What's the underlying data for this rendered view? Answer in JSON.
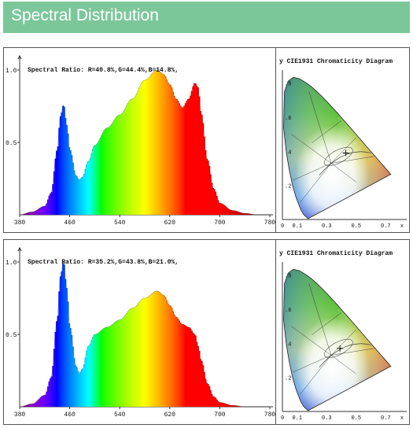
{
  "header": {
    "title": "Spectral Distribution"
  },
  "colors": {
    "banner": "#7cc79a"
  },
  "chart_data": [
    {
      "type": "area",
      "title": "Spectral Ratio:  R=40.8%,G=44.4%,B=14.8%,",
      "x_ticks": [
        "380",
        "460",
        "540",
        "620",
        "700",
        "780"
      ],
      "y_ticks": [
        "1.0",
        "0.5"
      ],
      "xlim": [
        380,
        780
      ],
      "ylim": [
        0,
        1.0
      ],
      "x": [
        380,
        400,
        420,
        430,
        440,
        445,
        450,
        455,
        460,
        470,
        475,
        480,
        490,
        500,
        520,
        540,
        560,
        580,
        600,
        610,
        620,
        630,
        640,
        650,
        660,
        665,
        670,
        680,
        690,
        700,
        720,
        740,
        760,
        780
      ],
      "y": [
        0.0,
        0.02,
        0.06,
        0.15,
        0.45,
        0.68,
        0.76,
        0.62,
        0.45,
        0.27,
        0.24,
        0.26,
        0.37,
        0.48,
        0.6,
        0.69,
        0.8,
        0.93,
        1.0,
        0.97,
        0.9,
        0.8,
        0.74,
        0.8,
        0.91,
        0.88,
        0.7,
        0.38,
        0.18,
        0.08,
        0.03,
        0.01,
        0.0,
        0.0
      ]
    },
    {
      "type": "scatter",
      "title": "y  CIE1931 Chromaticity Diagram",
      "x_ticks": [
        "0",
        "0.1",
        "0.3",
        "0.5",
        "0.7",
        "x"
      ],
      "y_ticks": [
        ".8",
        ".6",
        ".4",
        ".2"
      ],
      "point": [
        0.43,
        0.39
      ]
    },
    {
      "type": "area",
      "title": "Spectral Ratio:  R=35.2%,G=43.8%,B=21.0%,",
      "x_ticks": [
        "380",
        "460",
        "540",
        "620",
        "700",
        "780"
      ],
      "y_ticks": [
        "1.0",
        "0.5"
      ],
      "xlim": [
        380,
        780
      ],
      "ylim": [
        0,
        1.0
      ],
      "x": [
        380,
        400,
        420,
        430,
        440,
        445,
        450,
        455,
        460,
        470,
        475,
        480,
        490,
        500,
        520,
        540,
        560,
        580,
        600,
        610,
        620,
        630,
        640,
        650,
        660,
        665,
        670,
        680,
        690,
        700,
        720,
        740,
        760,
        780
      ],
      "y": [
        0.0,
        0.02,
        0.08,
        0.2,
        0.6,
        0.9,
        1.0,
        0.82,
        0.55,
        0.28,
        0.23,
        0.26,
        0.42,
        0.5,
        0.55,
        0.6,
        0.68,
        0.75,
        0.8,
        0.77,
        0.7,
        0.62,
        0.57,
        0.55,
        0.5,
        0.42,
        0.32,
        0.16,
        0.07,
        0.03,
        0.01,
        0.0,
        0.0,
        0.0
      ]
    },
    {
      "type": "scatter",
      "title": "y  CIE1931 Chromaticity Diagram",
      "x_ticks": [
        "0",
        "0.1",
        "0.3",
        "0.5",
        "0.7",
        "x"
      ],
      "y_ticks": [
        ".8",
        ".6",
        ".4",
        ".2"
      ],
      "point": [
        0.39,
        0.37
      ]
    }
  ]
}
